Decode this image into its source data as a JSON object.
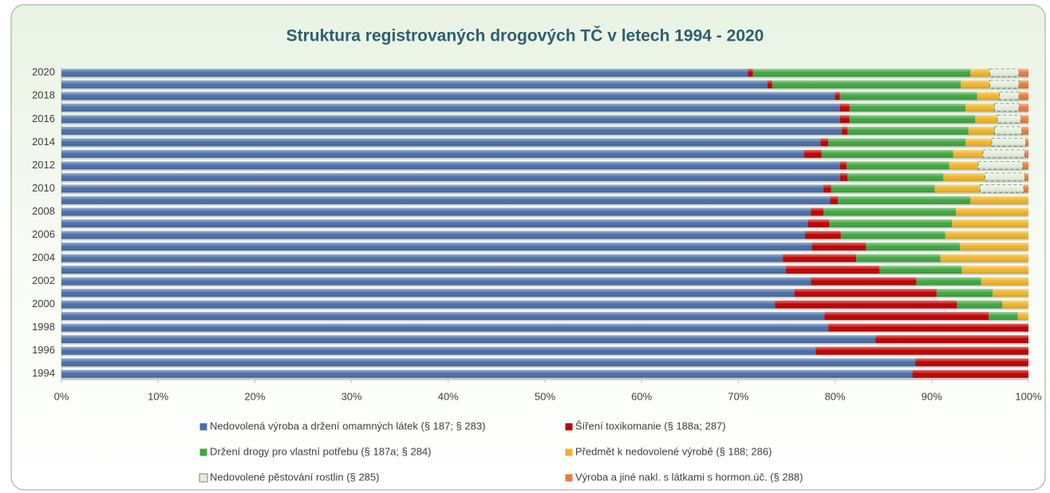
{
  "chart_data": {
    "type": "stacked_barh",
    "title": "Struktura registrovaných drogových TČ v letech 1994 - 2020",
    "categories": [
      "1994",
      null,
      "1996",
      null,
      "1998",
      null,
      "2000",
      null,
      "2002",
      null,
      "2004",
      null,
      "2006",
      null,
      "2008",
      null,
      "2010",
      null,
      "2012",
      null,
      "2014",
      null,
      "2016",
      null,
      "2018",
      null,
      "2020"
    ],
    "series": [
      {
        "name": "Nedovolená výroba a držení omamných látek (§ 187; § 283)",
        "color": "#4a6ea8",
        "values": [
          88,
          88.3,
          78,
          84.2,
          79.3,
          78.9,
          73.8,
          75.8,
          77.5,
          74.9,
          74.6,
          77.6,
          76.9,
          77.2,
          77.5,
          79.5,
          78.8,
          80.5,
          80.5,
          76.8,
          78.5,
          80.7,
          80.5,
          80.5,
          80,
          73,
          71
        ]
      },
      {
        "name": "Šíření toxikomanie (§ 188a; 287)",
        "color": "#c00000",
        "values": [
          12,
          11.7,
          22,
          15.8,
          20.7,
          17,
          18.8,
          14.7,
          10.9,
          9.7,
          7.6,
          5.6,
          3.7,
          2.2,
          1.3,
          0.8,
          0.8,
          0.8,
          0.7,
          1.8,
          0.8,
          0.6,
          1,
          1,
          0.5,
          0.5,
          0.5
        ]
      },
      {
        "name": "Držení drogy pro vlastní potřebu (§ 187a; § 284)",
        "color": "#3fa63f",
        "values": [
          0,
          0,
          0,
          0,
          0,
          3,
          4.7,
          5.8,
          6.7,
          8.5,
          8.7,
          9.7,
          10.8,
          12.7,
          13.7,
          13.7,
          10.7,
          9.9,
          10.6,
          13.6,
          14.2,
          12.5,
          13,
          12,
          14.2,
          19.5,
          22.5
        ]
      },
      {
        "name": "Předmět k nedovolené výrobě (§ 188; 286)",
        "color": "#f0b429",
        "values": [
          0,
          0,
          0,
          0,
          0,
          1.1,
          2.7,
          3.7,
          4.9,
          6.9,
          9.1,
          7.1,
          8.6,
          7.9,
          7.5,
          6,
          4.7,
          4.3,
          3,
          3.1,
          2.7,
          2.7,
          2.3,
          3,
          2.3,
          3,
          2
        ]
      },
      {
        "name": "Nedovolené pěstování rostlin (§ 285)",
        "color": "#e4eedc",
        "values": [
          0,
          0,
          0,
          0,
          0,
          0,
          0,
          0,
          0,
          0,
          0,
          0,
          0,
          0,
          0,
          0,
          4.5,
          4.1,
          4.6,
          4.3,
          3.5,
          2.8,
          2.4,
          2.5,
          2,
          3,
          3
        ]
      },
      {
        "name": "Výroba a jiné nakl. s látkami s hormon.úč. (§ 288)",
        "color": "#e97a3a",
        "values": [
          0,
          0,
          0,
          0,
          0,
          0,
          0,
          0,
          0,
          0,
          0,
          0,
          0,
          0,
          0,
          0,
          0.5,
          0.4,
          0.6,
          0.4,
          0.3,
          0.7,
          0.8,
          1,
          1,
          1,
          1
        ]
      }
    ],
    "xlim": [
      0,
      100
    ],
    "xticks": [
      {
        "value": 0,
        "label": "0%"
      },
      {
        "value": 10,
        "label": "10%"
      },
      {
        "value": 20,
        "label": "20%"
      },
      {
        "value": 30,
        "label": "30%"
      },
      {
        "value": 40,
        "label": "40%"
      },
      {
        "value": 50,
        "label": "50%"
      },
      {
        "value": 60,
        "label": "60%"
      },
      {
        "value": 70,
        "label": "70%"
      },
      {
        "value": 80,
        "label": "80%"
      },
      {
        "value": 90,
        "label": "90%"
      },
      {
        "value": 100,
        "label": "100%"
      }
    ],
    "grid": false
  }
}
